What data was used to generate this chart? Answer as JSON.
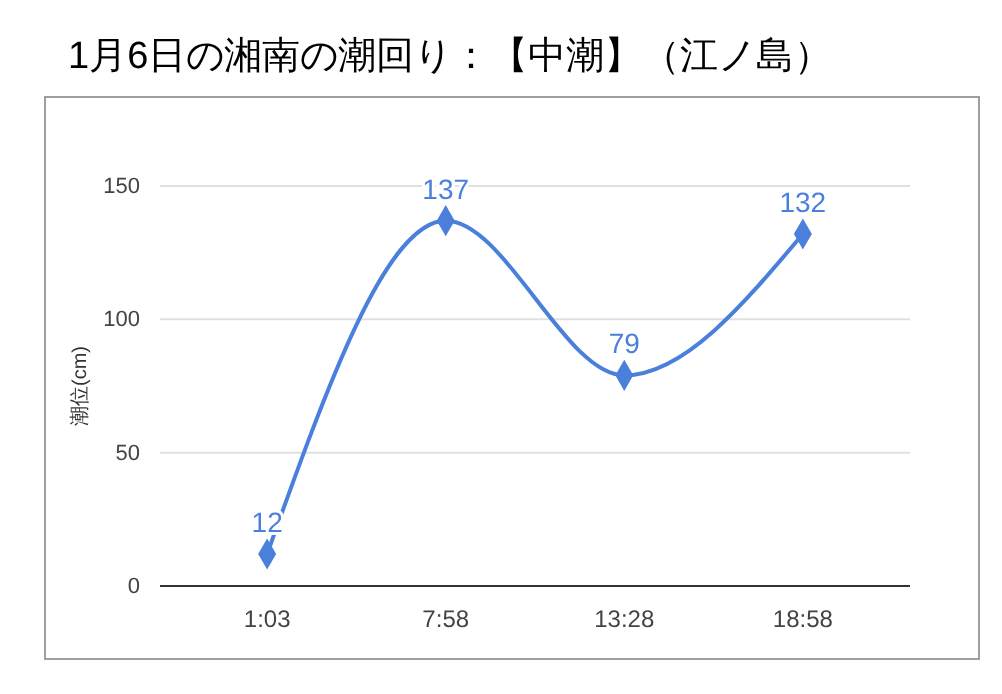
{
  "chart_data": {
    "type": "line",
    "title": "1月6日の湘南の潮回り：【中潮】（江ノ島）",
    "ylabel": "潮位(cm)",
    "categories": [
      "1:03",
      "7:58",
      "13:28",
      "18:58"
    ],
    "series": [
      {
        "color": "#4a7fdc",
        "values": [
          12,
          137,
          79,
          132
        ]
      }
    ],
    "ylim": [
      0,
      150
    ],
    "yticks": [
      0,
      50,
      100,
      150
    ],
    "grid": "y",
    "marker": "diamond",
    "line_style": "solid",
    "data_labels": true
  }
}
